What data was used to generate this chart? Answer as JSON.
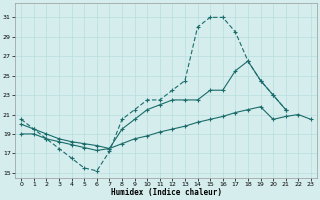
{
  "background_color": "#d6eded",
  "line_color": "#1a6b6b",
  "xlabel": "Humidex (Indice chaleur)",
  "xlim": [
    -0.5,
    23.5
  ],
  "ylim": [
    14.5,
    32.5
  ],
  "yticks": [
    15,
    17,
    19,
    21,
    23,
    25,
    27,
    29,
    31
  ],
  "xticks": [
    0,
    1,
    2,
    3,
    4,
    5,
    6,
    7,
    8,
    9,
    10,
    11,
    12,
    13,
    14,
    15,
    16,
    17,
    18,
    19,
    20,
    21,
    22,
    23
  ],
  "s1x": [
    0,
    1,
    2,
    3,
    4,
    5,
    6,
    7,
    8,
    9,
    10,
    11,
    12,
    13,
    14,
    15,
    16,
    17,
    18,
    19,
    20,
    21
  ],
  "s1y": [
    20.5,
    19.5,
    18.5,
    17.5,
    16.5,
    15.5,
    15.2,
    17.2,
    20.5,
    21.5,
    22.5,
    22.5,
    23.5,
    24.5,
    30.0,
    31.0,
    31.0,
    29.5,
    26.5,
    24.5,
    23.0,
    21.5
  ],
  "s2x": [
    0,
    1,
    2,
    3,
    4,
    5,
    6,
    7,
    8,
    9,
    10,
    11,
    12,
    13,
    14,
    15,
    16,
    17,
    18,
    19,
    20,
    21
  ],
  "s2y": [
    20.0,
    19.5,
    19.0,
    18.5,
    18.2,
    18.0,
    17.8,
    17.5,
    19.5,
    20.5,
    21.5,
    22.0,
    22.5,
    22.5,
    22.5,
    23.5,
    23.5,
    25.5,
    26.5,
    24.5,
    23.0,
    21.5
  ],
  "s3x": [
    0,
    1,
    2,
    3,
    4,
    5,
    6,
    7,
    8,
    9,
    10,
    11,
    12,
    13,
    14,
    15,
    16,
    17,
    18,
    19,
    20,
    21,
    22,
    23
  ],
  "s3y": [
    19.0,
    19.0,
    18.5,
    18.2,
    17.9,
    17.6,
    17.3,
    17.5,
    18.0,
    18.5,
    18.8,
    19.2,
    19.5,
    19.8,
    20.2,
    20.5,
    20.8,
    21.2,
    21.5,
    21.8,
    20.5,
    20.8,
    21.0,
    20.5
  ]
}
